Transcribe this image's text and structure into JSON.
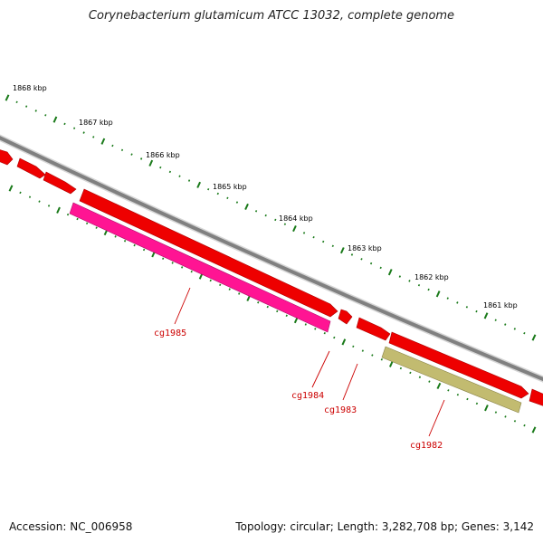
{
  "title": "Corynebacterium glutamicum ATCC 13032, complete genome",
  "accession_text": "Accession: NC_006958",
  "topology_text": "Topology: circular; Length: 3,282,708 bp; Genes: 3,142",
  "colors": {
    "backbone": "#8a8a8a",
    "gene_red": "#ee0000",
    "gene_pink": "#ff1493",
    "gene_olive": "#c2bb70",
    "tick_green": "#1a7a1a",
    "label_red": "#cc0000"
  },
  "kbp_labels": [
    "1868 kbp",
    "1867 kbp",
    "1866 kbp",
    "1865 kbp",
    "1864 kbp",
    "1863 kbp",
    "1862 kbp",
    "1861 kbp"
  ],
  "gene_labels": [
    "cg1985",
    "cg1984",
    "cg1983",
    "cg1982"
  ]
}
